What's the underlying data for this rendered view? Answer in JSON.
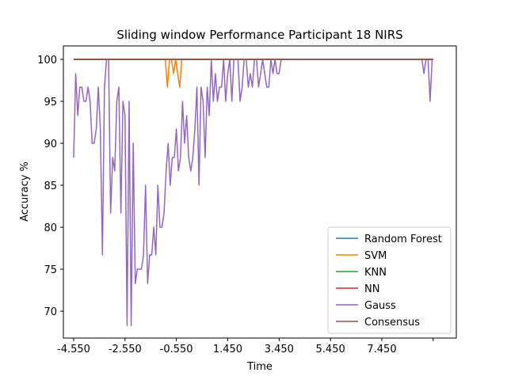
{
  "chart_data": {
    "type": "line",
    "title": "Sliding window Performance Participant 18 NIRS",
    "xlabel": "Time",
    "ylabel": "Accuracy %",
    "xlim": [
      -4.95,
      10.35
    ],
    "ylim": [
      66.8,
      101.6
    ],
    "xticks": [
      -4.55,
      -2.55,
      -0.55,
      1.45,
      3.45,
      5.45,
      7.45,
      9.45
    ],
    "xtick_labels": [
      "-4.550",
      "-2.550",
      "-0.550",
      "1.450",
      "3.450",
      "5.450",
      "7.450",
      ""
    ],
    "yticks": [
      70,
      75,
      80,
      85,
      90,
      95,
      100
    ],
    "ytick_labels": [
      "70",
      "75",
      "80",
      "85",
      "90",
      "95",
      "100"
    ],
    "grid": false,
    "legend_position": "lower-right",
    "series": [
      {
        "name": "Random Forest",
        "color": "#1f77b4",
        "x": [
          -4.55,
          9.45
        ],
        "y": [
          100,
          100
        ]
      },
      {
        "name": "SVM",
        "color": "#ff7f0e",
        "x": [
          -4.55,
          -0.98,
          -0.9,
          -0.82,
          -0.74,
          -0.66,
          -0.58,
          -0.5,
          -0.42,
          -0.34,
          9.45
        ],
        "y": [
          100,
          100,
          96.7,
          100,
          100,
          98.3,
          100,
          98.3,
          96.7,
          100,
          100
        ]
      },
      {
        "name": "KNN",
        "color": "#2ca02c",
        "x": [
          -4.55,
          9.45
        ],
        "y": [
          100,
          100
        ]
      },
      {
        "name": "NN",
        "color": "#d62728",
        "x": [
          -4.55,
          9.45
        ],
        "y": [
          100,
          100
        ]
      },
      {
        "name": "Gauss",
        "color": "#9467bd",
        "x": [
          -4.55,
          -4.47,
          -4.39,
          -4.31,
          -4.23,
          -4.15,
          -4.07,
          -3.99,
          -3.91,
          -3.83,
          -3.75,
          -3.67,
          -3.59,
          -3.51,
          -3.43,
          -3.35,
          -3.27,
          -3.19,
          -3.11,
          -3.03,
          -2.95,
          -2.87,
          -2.79,
          -2.71,
          -2.63,
          -2.55,
          -2.47,
          -2.39,
          -2.31,
          -2.23,
          -2.15,
          -2.07,
          -1.99,
          -1.91,
          -1.83,
          -1.75,
          -1.67,
          -1.59,
          -1.51,
          -1.43,
          -1.35,
          -1.27,
          -1.19,
          -1.11,
          -1.03,
          -0.95,
          -0.87,
          -0.79,
          -0.71,
          -0.63,
          -0.55,
          -0.47,
          -0.39,
          -0.31,
          -0.23,
          -0.15,
          -0.07,
          0.01,
          0.09,
          0.17,
          0.25,
          0.33,
          0.41,
          0.49,
          0.57,
          0.65,
          0.73,
          0.81,
          0.89,
          0.97,
          1.05,
          1.13,
          1.21,
          1.29,
          1.37,
          1.45,
          1.53,
          1.61,
          1.69,
          1.77,
          1.85,
          1.93,
          2.01,
          2.09,
          2.17,
          2.25,
          2.33,
          2.41,
          2.49,
          2.57,
          2.65,
          2.73,
          2.81,
          2.89,
          2.97,
          3.05,
          3.13,
          3.21,
          3.29,
          3.37,
          3.45,
          3.53,
          3.61,
          3.69,
          3.77,
          3.85,
          3.93,
          4.01,
          4.09,
          4.17,
          4.25,
          4.33,
          4.41,
          4.49,
          4.57,
          4.65,
          4.73,
          4.81,
          4.89,
          4.97,
          5.05,
          5.13,
          5.21,
          5.29,
          5.37,
          5.45,
          5.53,
          8.85,
          8.93,
          9.01,
          9.09,
          9.17,
          9.25,
          9.33,
          9.41,
          9.45
        ],
        "y": [
          88.3,
          98.3,
          93.3,
          96.7,
          96.7,
          95,
          95,
          96.7,
          95,
          90,
          90,
          91.7,
          96.7,
          91.7,
          76.7,
          96.7,
          100,
          100,
          81.7,
          88.3,
          86.7,
          95,
          96.7,
          81.7,
          95,
          93.3,
          68.3,
          95,
          68.3,
          90,
          73.3,
          75,
          75,
          75,
          76.7,
          85,
          73.3,
          76.7,
          76.7,
          80,
          76.7,
          85,
          80,
          80,
          81.7,
          86.7,
          90,
          85,
          88.3,
          88.3,
          91.7,
          86.7,
          88.3,
          95,
          90,
          93.3,
          88.3,
          86.7,
          88.3,
          91.7,
          96.7,
          85,
          96.7,
          95,
          88.3,
          96.7,
          93.3,
          100,
          95,
          98.3,
          95,
          96.7,
          96.7,
          100,
          95,
          98.3,
          100,
          95,
          100,
          100,
          100,
          95,
          96.7,
          100,
          100,
          96.7,
          98.3,
          96.7,
          100,
          100,
          96.7,
          98.3,
          100,
          98.3,
          96.7,
          96.7,
          100,
          98.3,
          100,
          98.3,
          98.3,
          100,
          100,
          100,
          100,
          100,
          100,
          100,
          100,
          100,
          100,
          100,
          100,
          100,
          100,
          100,
          100,
          100,
          100,
          100,
          100,
          100,
          100,
          100,
          100,
          100,
          100,
          100,
          100,
          100,
          98.3,
          100,
          100,
          95,
          100,
          100
        ],
        "y_note": ""
      },
      {
        "name": "Consensus",
        "color": "#8c564b",
        "x": [
          -4.55,
          9.45
        ],
        "y": [
          100,
          100
        ]
      }
    ]
  }
}
